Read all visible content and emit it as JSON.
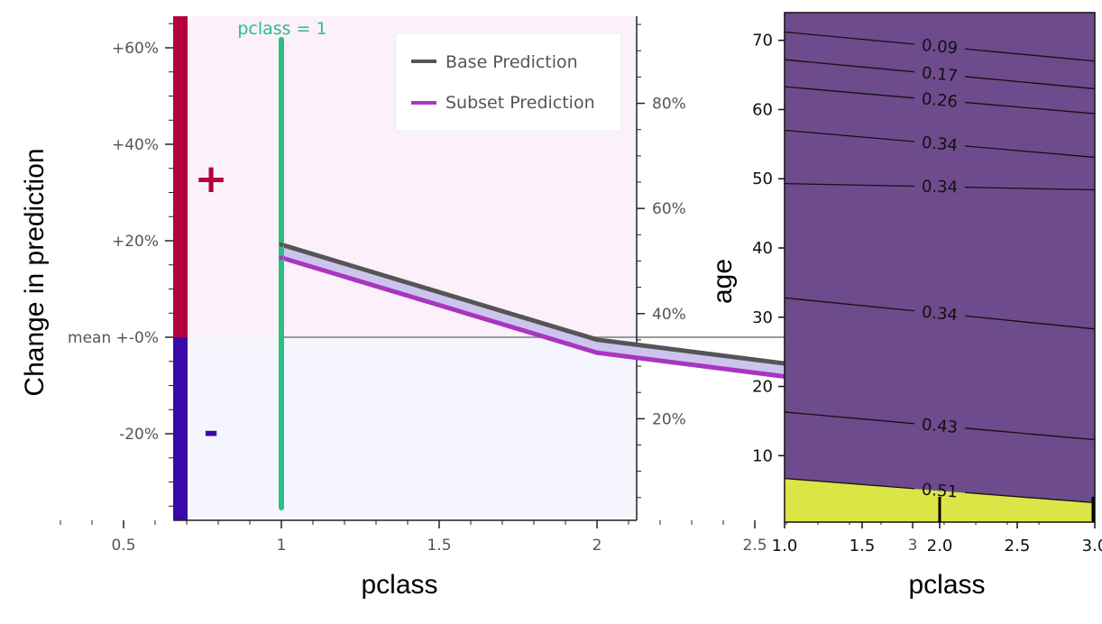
{
  "chart_data": [
    {
      "type": "line",
      "xlabel": "pclass",
      "ylabel": "Change in prediction",
      "x_ticks": [
        0.5,
        1,
        1.5,
        2,
        2.5,
        3
      ],
      "x_tick_labels": [
        "0.5",
        "1",
        "1.5",
        "2",
        "2.5",
        "3"
      ],
      "xlim": [
        0.3,
        3.4
      ],
      "y_ticks": [
        -20,
        0,
        20,
        40,
        60
      ],
      "y_tick_labels": [
        "-20%",
        "mean +-0%",
        "+20%",
        "+40%",
        "+60%"
      ],
      "ylim": [
        -37.5,
        66.5
      ],
      "y2_ticks": [
        20,
        40,
        60,
        80
      ],
      "y2_tick_labels": [
        "20%",
        "40%",
        "60%",
        "80%"
      ],
      "mean_prediction_percent": 35.5,
      "grid": false,
      "legend_position": "top-right",
      "categories": [
        1,
        2,
        3
      ],
      "series": [
        {
          "name": "Base Prediction",
          "values": [
            19.2,
            -0.5,
            -8.8
          ],
          "color": "#555555"
        },
        {
          "name": "Subset Prediction",
          "values": [
            16.5,
            -3.2,
            -11.5
          ],
          "color": "#a935c0"
        }
      ],
      "selection": {
        "label": "pclass = 1",
        "x": 1,
        "color": "#2bbf83"
      },
      "positive_symbol": "+",
      "negative_symbol": "-",
      "colors": {
        "positive": "#b3003c",
        "negative": "#3a0aa8",
        "positive_bg": "#fcf0fa",
        "negative_bg": "#f4f5fd",
        "fill_between": "#cdc4ee"
      }
    },
    {
      "type": "contour",
      "xlabel": "pclass",
      "ylabel": "age",
      "xlim": [
        1.0,
        3.0
      ],
      "ylim": [
        0.4,
        74
      ],
      "x_ticks": [
        1.0,
        1.5,
        2.0,
        2.5,
        3.0
      ],
      "x_tick_labels": [
        "1.0",
        "1.5",
        "2.0",
        "2.5",
        "3.0"
      ],
      "y_ticks": [
        10,
        20,
        30,
        40,
        50,
        60,
        70
      ],
      "y_tick_labels": [
        "10",
        "20",
        "30",
        "40",
        "50",
        "60",
        "70"
      ],
      "contour_lines": [
        {
          "label": "0.09",
          "age_at_x1": 71.2,
          "age_at_x3": 67.0
        },
        {
          "label": "0.17",
          "age_at_x1": 67.2,
          "age_at_x3": 63.0
        },
        {
          "label": "0.26",
          "age_at_x1": 63.3,
          "age_at_x3": 59.4
        },
        {
          "label": "0.34",
          "age_at_x1": 57.0,
          "age_at_x3": 53.1
        },
        {
          "label": "0.34",
          "age_at_x1": 49.3,
          "age_at_x3": 48.4
        },
        {
          "label": "0.34",
          "age_at_x1": 32.8,
          "age_at_x3": 28.3
        },
        {
          "label": "0.43",
          "age_at_x1": 16.3,
          "age_at_x3": 12.3
        },
        {
          "label": "0.51",
          "age_at_x1": 6.7,
          "age_at_x3": 3.2
        }
      ],
      "band_colors": [
        "#dce546",
        "#92d874",
        "#5cc68e",
        "#55aaaa",
        "#5cc495",
        "#5aa5a8",
        "#6c89ab",
        "#6e6aa6",
        "#6e4b8c"
      ],
      "rug_x": [
        2.0,
        3.0
      ]
    }
  ]
}
